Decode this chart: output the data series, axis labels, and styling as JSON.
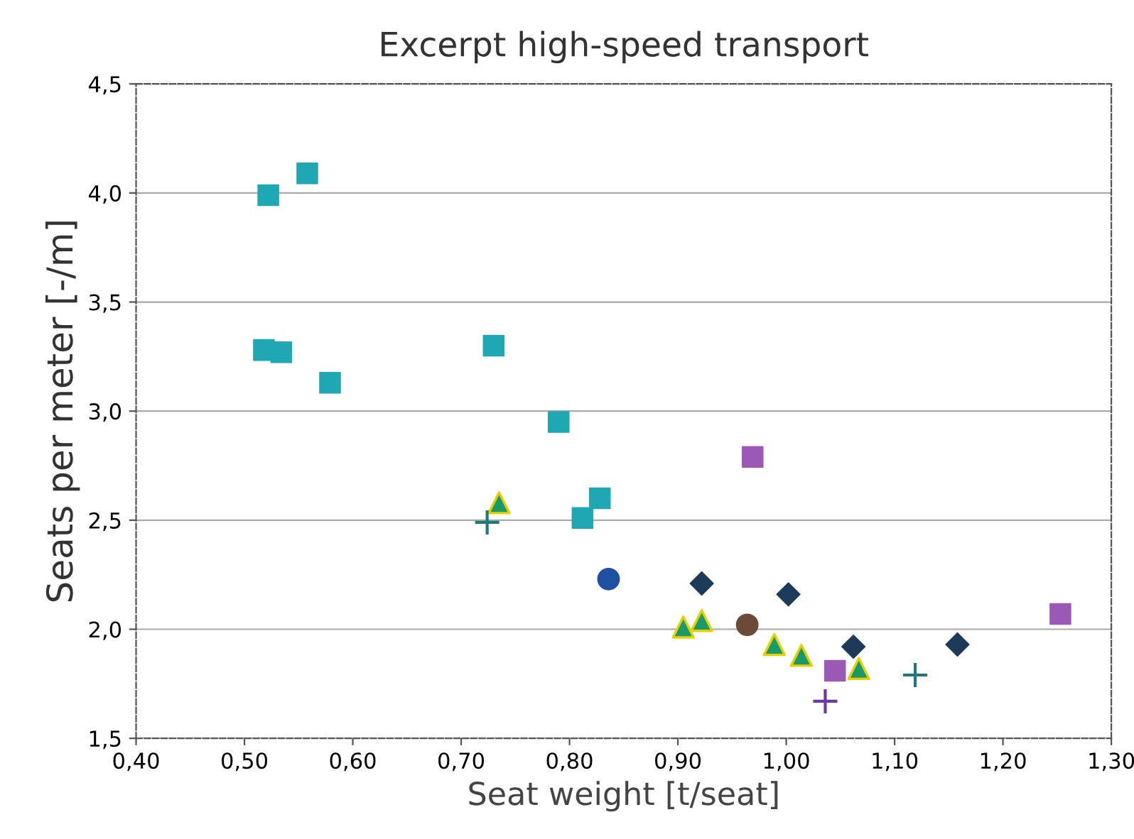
{
  "chart_data": {
    "type": "scatter",
    "title": "Excerpt high-speed transport",
    "xlabel": "Seat weight [t/seat]",
    "ylabel": "Seats per meter [-/m]",
    "xlim": [
      0.4,
      1.3
    ],
    "ylim": [
      1.5,
      4.5
    ],
    "xticks": [
      {
        "value": 0.4,
        "label": "0,40"
      },
      {
        "value": 0.5,
        "label": "0,50"
      },
      {
        "value": 0.6,
        "label": "0,60"
      },
      {
        "value": 0.7,
        "label": "0,70"
      },
      {
        "value": 0.8,
        "label": "0,80"
      },
      {
        "value": 0.9,
        "label": "0,90"
      },
      {
        "value": 1.0,
        "label": "1,00"
      },
      {
        "value": 1.1,
        "label": "1,10"
      },
      {
        "value": 1.2,
        "label": "1,20"
      },
      {
        "value": 1.3,
        "label": "1,30"
      }
    ],
    "yticks": [
      {
        "value": 1.5,
        "label": "1,5"
      },
      {
        "value": 2.0,
        "label": "2,0"
      },
      {
        "value": 2.5,
        "label": "2,5"
      },
      {
        "value": 3.0,
        "label": "3,0"
      },
      {
        "value": 3.5,
        "label": "3,5"
      },
      {
        "value": 4.0,
        "label": "4,0"
      },
      {
        "value": 4.5,
        "label": "4,5"
      }
    ],
    "grid": "y",
    "legend": false,
    "series": [
      {
        "color": "#1fa8b4",
        "marker": "square",
        "x": [
          0.522,
          0.558,
          0.518,
          0.534,
          0.579,
          0.73,
          0.79,
          0.828,
          0.812
        ],
        "values": [
          3.99,
          4.09,
          3.28,
          3.27,
          3.13,
          3.3,
          2.95,
          2.6,
          2.51
        ]
      },
      {
        "color": "#1a9a6a",
        "marker": "triangle",
        "x": [
          0.735,
          0.905,
          0.922,
          0.989,
          1.014,
          1.067
        ],
        "values": [
          2.58,
          2.01,
          2.04,
          1.93,
          1.88,
          1.82
        ]
      },
      {
        "color": "#1e7a7a",
        "marker": "cross",
        "x": [
          0.724,
          1.119
        ],
        "values": [
          2.49,
          1.79
        ]
      },
      {
        "color": "#2050a0",
        "marker": "circle",
        "x": [
          0.836
        ],
        "values": [
          2.23
        ]
      },
      {
        "color": "#6b4a3a",
        "marker": "circle",
        "x": [
          0.964
        ],
        "values": [
          2.02
        ]
      },
      {
        "color": "#1e3a5a",
        "marker": "diamond",
        "x": [
          0.922,
          1.002,
          1.062,
          1.158
        ],
        "values": [
          2.21,
          2.16,
          1.92,
          1.93
        ]
      },
      {
        "color": "#9b59b6",
        "marker": "square",
        "x": [
          0.969,
          1.045,
          1.253
        ],
        "values": [
          2.79,
          1.81,
          2.07
        ]
      },
      {
        "color": "#6a3aa0",
        "marker": "cross",
        "x": [
          1.036
        ],
        "values": [
          1.67
        ]
      }
    ]
  }
}
